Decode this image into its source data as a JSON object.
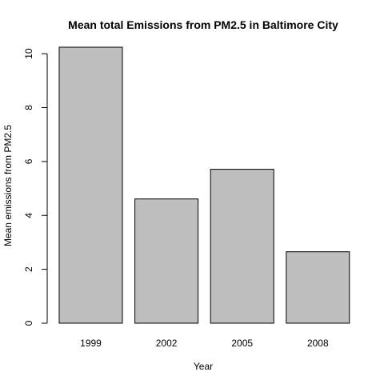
{
  "chart_data": {
    "type": "bar",
    "title": "Mean total Emissions from PM2.5 in Baltimore City",
    "xlabel": "Year",
    "ylabel": "Mean emissions from PM2.5",
    "categories": [
      "1999",
      "2002",
      "2005",
      "2008"
    ],
    "values": [
      10.24,
      4.61,
      5.71,
      2.65
    ],
    "ylim": [
      0,
      10.24
    ],
    "yticks": [
      0,
      2,
      4,
      6,
      8,
      10
    ],
    "ytick_labels": [
      "0",
      "2",
      "4",
      "6",
      "8",
      "10"
    ],
    "grid": false,
    "legend": "none",
    "colors": {
      "bar_fill": "#bebebe",
      "bar_stroke": "#000000",
      "axis": "#000000",
      "background": "#ffffff"
    }
  }
}
